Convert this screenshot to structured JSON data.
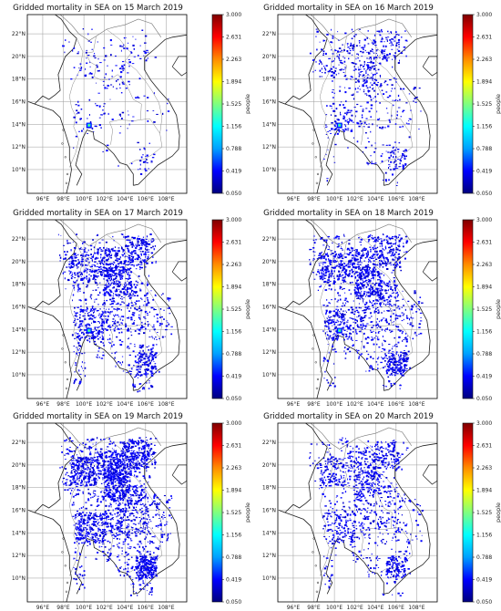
{
  "colorbar": {
    "ticks": [
      "3.000",
      "2.631",
      "2.263",
      "1.894",
      "1.525",
      "1.156",
      "0.788",
      "0.419",
      "0.050"
    ],
    "label": "people",
    "range": [
      0.05,
      3.0
    ],
    "colormap": "jet",
    "stops": [
      "#00007f",
      "#0000ff",
      "#00a0ff",
      "#00ffff",
      "#7fff7f",
      "#ffff00",
      "#ff8c00",
      "#ff0000",
      "#7f0000"
    ]
  },
  "lat_ticks": [
    "22°N",
    "20°N",
    "18°N",
    "16°N",
    "14°N",
    "12°N",
    "10°N"
  ],
  "lon_ticks": [
    "96°E",
    "98°E",
    "100°E",
    "102°E",
    "104°E",
    "106°E",
    "108°E"
  ],
  "map_extent": {
    "lon": [
      94.5,
      110.0
    ],
    "lat": [
      7.9,
      23.7
    ]
  },
  "panels": [
    {
      "title": "Gridded mortality in SEA on 15 March 2019",
      "density": 0.18,
      "hotspot": true
    },
    {
      "title": "Gridded mortality in SEA on 16 March 2019",
      "density": 0.32,
      "hotspot": true
    },
    {
      "title": "Gridded mortality in SEA on 17 March 2019",
      "density": 0.48,
      "hotspot": true
    },
    {
      "title": "Gridded mortality in SEA on 18 March 2019",
      "density": 0.5,
      "hotspot": true
    },
    {
      "title": "Gridded mortality in SEA on 19 March 2019",
      "density": 0.58,
      "hotspot": false
    },
    {
      "title": "Gridded mortality in SEA on 20 March 2019",
      "density": 0.42,
      "hotspot": false
    }
  ]
}
